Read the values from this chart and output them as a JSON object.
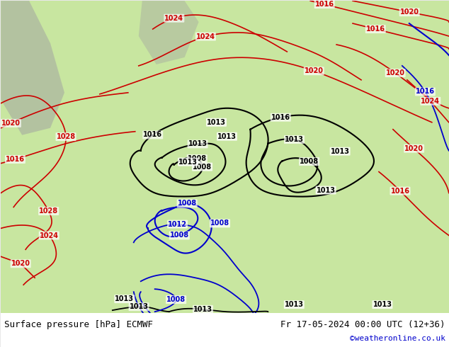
{
  "title_left": "Surface pressure [hPa] ECMWF",
  "title_right": "Fr 17-05-2024 00:00 UTC (12+36)",
  "credit": "©weatheronline.co.uk",
  "land_color": "#c8e6a0",
  "isobar_color_red": "#cc0000",
  "isobar_color_black": "#000000",
  "isobar_color_blue": "#0000cc",
  "figsize": [
    6.34,
    4.9
  ],
  "dpi": 100
}
